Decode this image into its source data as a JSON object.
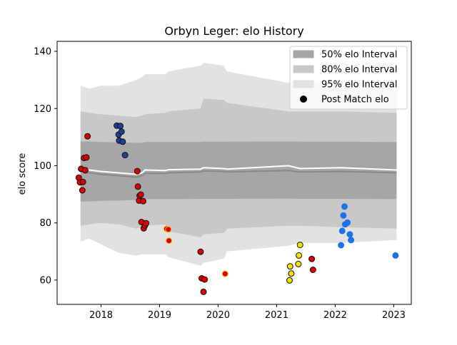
{
  "chart_data": {
    "type": "scatter",
    "title": "Orbyn Leger: elo History",
    "xlabel": "",
    "ylabel": "elo score",
    "xlim": [
      2017.25,
      2023.3
    ],
    "ylim": [
      51.5,
      143.5
    ],
    "x_ticks": [
      2018,
      2019,
      2020,
      2021,
      2022,
      2023
    ],
    "x_tick_labels": [
      "2018",
      "2019",
      "2020",
      "2021",
      "2022",
      "2023"
    ],
    "y_ticks": [
      60,
      80,
      100,
      120,
      140
    ],
    "y_tick_labels": [
      "60",
      "80",
      "100",
      "120",
      "140"
    ],
    "grid": false,
    "legend_position": "top-right",
    "legend": [
      {
        "label": "50% elo Interval",
        "kind": "patch",
        "color": "#a6a6a6"
      },
      {
        "label": "80% elo Interval",
        "kind": "patch",
        "color": "#c8c8c8"
      },
      {
        "label": "95% elo Interval",
        "kind": "patch",
        "color": "#e2e2e2"
      },
      {
        "label": "Post Match elo",
        "kind": "marker",
        "color": "#000000"
      }
    ],
    "band_x": [
      2017.65,
      2017.8,
      2018.0,
      2018.3,
      2018.6,
      2018.7,
      2018.75,
      2019.1,
      2019.15,
      2019.7,
      2019.75,
      2020.1,
      2020.15,
      2021.2,
      2021.4,
      2022.1,
      2023.05
    ],
    "mean_line": [
      99.0,
      98.5,
      98.0,
      97.5,
      97.0,
      97.5,
      98.5,
      98.3,
      98.6,
      98.8,
      99.3,
      99.0,
      98.8,
      100.0,
      99.0,
      99.3,
      98.5
    ],
    "median_line": [
      98.0,
      97.5,
      97.0,
      96.5,
      96.0,
      96.5,
      97.3,
      97.3,
      97.5,
      97.8,
      98.2,
      98.0,
      97.8,
      98.3,
      97.8,
      98.0,
      97.5
    ],
    "band_50": {
      "lower": [
        87.5,
        87.5,
        87.7,
        87.8,
        88.0,
        88.0,
        88.3,
        88.3,
        88.3,
        88.4,
        88.4,
        88.4,
        88.4,
        88.5,
        88.4,
        88.4,
        88.3
      ],
      "upper": [
        108.5,
        108.5,
        108.3,
        108.2,
        108.0,
        108.0,
        108.3,
        108.3,
        108.3,
        108.3,
        108.4,
        108.4,
        108.4,
        108.5,
        108.4,
        108.4,
        108.3
      ]
    },
    "band_80": {
      "lower": [
        79.0,
        79.5,
        80.0,
        79.5,
        78.0,
        78.5,
        79.0,
        79.5,
        77.0,
        75.0,
        76.0,
        76.5,
        78.0,
        79.0,
        79.0,
        78.5,
        78.0
      ],
      "upper": [
        119.0,
        118.5,
        118.0,
        117.5,
        117.0,
        117.5,
        118.0,
        118.5,
        119.0,
        120.0,
        123.5,
        123.0,
        122.0,
        119.0,
        119.0,
        119.0,
        118.5
      ]
    },
    "band_95": {
      "lower": [
        73.5,
        74.5,
        72.5,
        69.5,
        68.5,
        69.0,
        69.0,
        69.0,
        68.0,
        65.0,
        66.0,
        67.5,
        70.0,
        72.0,
        73.0,
        73.0,
        74.0
      ],
      "upper": [
        128.0,
        127.0,
        128.0,
        128.0,
        130.0,
        131.0,
        132.0,
        132.0,
        133.0,
        135.0,
        136.0,
        135.0,
        133.0,
        129.0,
        129.0,
        129.5,
        128.5
      ]
    },
    "points": [
      {
        "x": 2017.62,
        "y": 95.8,
        "fill": "#dd0000",
        "edge": "#111111"
      },
      {
        "x": 2017.64,
        "y": 94.2,
        "fill": "#dd0000",
        "edge": "#111111"
      },
      {
        "x": 2017.66,
        "y": 98.9,
        "fill": "#dd0000",
        "edge": "#111111"
      },
      {
        "x": 2017.68,
        "y": 91.4,
        "fill": "#dd0000",
        "edge": "#111111"
      },
      {
        "x": 2017.69,
        "y": 94.3,
        "fill": "#dd0000",
        "edge": "#111111"
      },
      {
        "x": 2017.71,
        "y": 102.7,
        "fill": "#dd0000",
        "edge": "#111111"
      },
      {
        "x": 2017.73,
        "y": 98.4,
        "fill": "#dd0000",
        "edge": "#111111"
      },
      {
        "x": 2017.75,
        "y": 102.9,
        "fill": "#dd0000",
        "edge": "#111111"
      },
      {
        "x": 2017.77,
        "y": 110.3,
        "fill": "#dd0000",
        "edge": "#111111"
      },
      {
        "x": 2018.27,
        "y": 114.0,
        "fill": "#1f3f99",
        "edge": "#111111"
      },
      {
        "x": 2018.3,
        "y": 110.9,
        "fill": "#1f3f99",
        "edge": "#111111"
      },
      {
        "x": 2018.31,
        "y": 108.8,
        "fill": "#1f3f99",
        "edge": "#111111"
      },
      {
        "x": 2018.33,
        "y": 113.9,
        "fill": "#1f3f99",
        "edge": "#111111"
      },
      {
        "x": 2018.35,
        "y": 111.9,
        "fill": "#1f3f99",
        "edge": "#111111"
      },
      {
        "x": 2018.37,
        "y": 108.4,
        "fill": "#1f3f99",
        "edge": "#111111"
      },
      {
        "x": 2018.41,
        "y": 103.7,
        "fill": "#1f3f99",
        "edge": "#111111"
      },
      {
        "x": 2018.62,
        "y": 98.1,
        "fill": "#dd0000",
        "edge": "#111111"
      },
      {
        "x": 2018.63,
        "y": 92.7,
        "fill": "#dd0000",
        "edge": "#111111"
      },
      {
        "x": 2018.65,
        "y": 87.8,
        "fill": "#dd0000",
        "edge": "#111111"
      },
      {
        "x": 2018.66,
        "y": 89.5,
        "fill": "#dd0000",
        "edge": "#111111"
      },
      {
        "x": 2018.68,
        "y": 89.9,
        "fill": "#dd0000",
        "edge": "#111111"
      },
      {
        "x": 2018.69,
        "y": 80.3,
        "fill": "#dd0000",
        "edge": "#111111"
      },
      {
        "x": 2018.72,
        "y": 87.6,
        "fill": "#dd0000",
        "edge": "#111111"
      },
      {
        "x": 2018.73,
        "y": 78.1,
        "fill": "#dd0000",
        "edge": "#111111"
      },
      {
        "x": 2018.75,
        "y": 79.1,
        "fill": "#dd0000",
        "edge": "#111111"
      },
      {
        "x": 2018.77,
        "y": 79.9,
        "fill": "#dd0000",
        "edge": "#111111"
      },
      {
        "x": 2019.12,
        "y": 77.9,
        "fill": "#dd0000",
        "edge": "#f5c400"
      },
      {
        "x": 2019.15,
        "y": 77.7,
        "fill": "#dd0000",
        "edge": "#f5c400"
      },
      {
        "x": 2019.16,
        "y": 73.8,
        "fill": "#dd0000",
        "edge": "#f5c400"
      },
      {
        "x": 2019.7,
        "y": 69.9,
        "fill": "#dd0000",
        "edge": "#111111"
      },
      {
        "x": 2019.72,
        "y": 60.6,
        "fill": "#dd0000",
        "edge": "#111111"
      },
      {
        "x": 2019.75,
        "y": 55.9,
        "fill": "#dd0000",
        "edge": "#111111"
      },
      {
        "x": 2019.77,
        "y": 60.2,
        "fill": "#dd0000",
        "edge": "#111111"
      },
      {
        "x": 2020.12,
        "y": 62.2,
        "fill": "#dd0000",
        "edge": "#f5c400"
      },
      {
        "x": 2021.22,
        "y": 59.9,
        "fill": "#f5e000",
        "edge": "#111111"
      },
      {
        "x": 2021.23,
        "y": 64.8,
        "fill": "#f5e000",
        "edge": "#111111"
      },
      {
        "x": 2021.25,
        "y": 62.3,
        "fill": "#f5e000",
        "edge": "#111111"
      },
      {
        "x": 2021.37,
        "y": 65.6,
        "fill": "#f5e000",
        "edge": "#111111"
      },
      {
        "x": 2021.38,
        "y": 68.6,
        "fill": "#f5e000",
        "edge": "#111111"
      },
      {
        "x": 2021.4,
        "y": 72.3,
        "fill": "#f5e000",
        "edge": "#111111"
      },
      {
        "x": 2021.6,
        "y": 67.4,
        "fill": "#dd0000",
        "edge": "#111111"
      },
      {
        "x": 2021.62,
        "y": 63.6,
        "fill": "#dd0000",
        "edge": "#111111"
      },
      {
        "x": 2022.1,
        "y": 72.2,
        "fill": "#1a73e8",
        "edge": "#1a73e8"
      },
      {
        "x": 2022.12,
        "y": 77.2,
        "fill": "#1a73e8",
        "edge": "#1a73e8"
      },
      {
        "x": 2022.14,
        "y": 82.6,
        "fill": "#1a73e8",
        "edge": "#1a73e8"
      },
      {
        "x": 2022.16,
        "y": 85.7,
        "fill": "#1a73e8",
        "edge": "#1a73e8"
      },
      {
        "x": 2022.17,
        "y": 79.5,
        "fill": "#1a73e8",
        "edge": "#1a73e8"
      },
      {
        "x": 2022.21,
        "y": 80.1,
        "fill": "#1a73e8",
        "edge": "#1a73e8"
      },
      {
        "x": 2022.25,
        "y": 76.0,
        "fill": "#1a73e8",
        "edge": "#1a73e8"
      },
      {
        "x": 2022.27,
        "y": 74.0,
        "fill": "#1a73e8",
        "edge": "#1a73e8"
      },
      {
        "x": 2023.03,
        "y": 68.6,
        "fill": "#1a73e8",
        "edge": "#1a73e8"
      }
    ]
  }
}
